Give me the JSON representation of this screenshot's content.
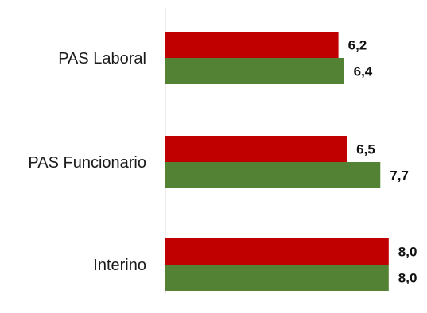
{
  "chart_data": {
    "type": "bar",
    "orientation": "horizontal",
    "categories": [
      "PAS Laboral",
      "PAS Funcionario",
      "Interino"
    ],
    "series": [
      {
        "values": [
          6.2,
          6.5,
          8.0
        ],
        "labels": [
          "6,2",
          "6,5",
          "8,0"
        ],
        "color": "#c00000"
      },
      {
        "values": [
          6.4,
          7.7,
          8.0
        ],
        "labels": [
          "6,4",
          "7,7",
          "8,0"
        ],
        "color": "#548235"
      }
    ],
    "title": "",
    "xlabel": "",
    "ylabel": "",
    "xlim": [
      0,
      10
    ],
    "grid": false,
    "legend": "none",
    "axis_color": "#d9d9d9"
  }
}
